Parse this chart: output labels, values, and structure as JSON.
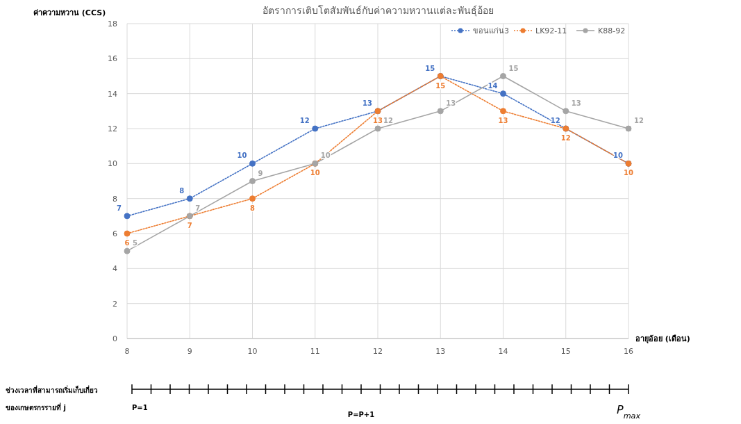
{
  "chart_data": {
    "type": "line",
    "title": "อัตราการเติบโตสัมพันธ์กับค่าความหวานแต่ละพันธุ์อ้อย",
    "ylabel": "ค่าความหวาน (CCS)",
    "xlabel": "อายุอ้อย (เดือน)",
    "x": [
      8,
      9,
      10,
      11,
      12,
      13,
      14,
      15,
      16
    ],
    "series": [
      {
        "name": "ขอนแก่น3",
        "color": "#4472c4",
        "line_style": "dotted",
        "values": [
          7,
          8,
          10,
          12,
          13,
          15,
          14,
          12,
          10
        ]
      },
      {
        "name": "LK92-11",
        "color": "#ed7d31",
        "line_style": "dotted",
        "values": [
          6,
          7,
          8,
          10,
          13,
          15,
          13,
          12,
          10
        ]
      },
      {
        "name": "K88-92",
        "color": "#a5a5a5",
        "line_style": "solid",
        "values": [
          5,
          7,
          9,
          10,
          12,
          13,
          15,
          13,
          12
        ]
      }
    ],
    "xlim": [
      8,
      16
    ],
    "xticks": [
      8,
      9,
      10,
      11,
      12,
      13,
      14,
      15,
      16
    ],
    "ylim": [
      0,
      18
    ],
    "yticks": [
      0,
      2,
      4,
      6,
      8,
      10,
      12,
      14,
      16,
      18
    ],
    "grid": true,
    "legend": "top right",
    "marker": "circle",
    "data_labels": true,
    "annotations": [
      "ช่วงเวลาที่สามารถเริ่มเก็บเกี่ยว",
      "ของเกษตรกรรายที่ j",
      "P=1",
      "P=P+1",
      "P$_{max}$"
    ]
  }
}
